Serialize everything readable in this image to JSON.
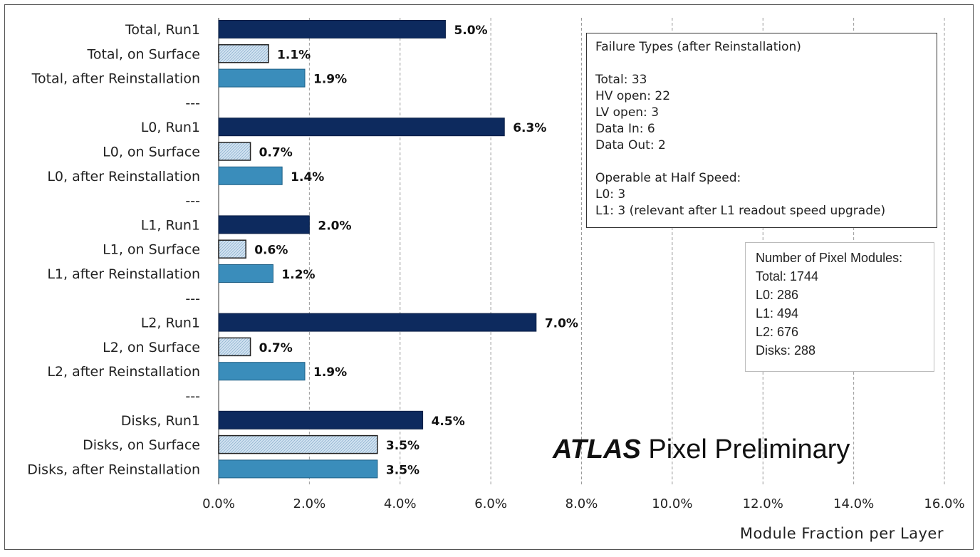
{
  "chart_data": {
    "type": "bar",
    "orientation": "horizontal",
    "xlabel": "Module Fraction per Layer",
    "xlim": [
      0,
      16
    ],
    "x_ticks": [
      "0.0%",
      "2.0%",
      "4.0%",
      "6.0%",
      "8.0%",
      "10.0%",
      "12.0%",
      "14.0%",
      "16.0%"
    ],
    "grid": "vertical dashed",
    "categories": [
      "Total, Run1",
      "Total, on Surface",
      "Total, after Reinstallation",
      "---",
      "L0, Run1",
      "L0, on Surface",
      "L0, after Reinstallation",
      "---",
      "L1, Run1",
      "L1, on Surface",
      "L1, after Reinstallation",
      "---",
      "L2, Run1",
      "L2, on Surface",
      "L2, after Reinstallation",
      "---",
      "Disks, Run1",
      "Disks, on Surface",
      "Disks, after Reinstallation"
    ],
    "values": [
      5.0,
      1.1,
      1.9,
      null,
      6.3,
      0.7,
      1.4,
      null,
      2.0,
      0.6,
      1.2,
      null,
      7.0,
      0.7,
      1.9,
      null,
      4.5,
      3.5,
      3.5
    ],
    "value_labels": [
      "5.0%",
      "1.1%",
      "1.9%",
      "",
      "6.3%",
      "0.7%",
      "1.4%",
      "",
      "2.0%",
      "0.6%",
      "1.2%",
      "",
      "7.0%",
      "0.7%",
      "1.9%",
      "",
      "4.5%",
      "3.5%",
      "3.5%"
    ],
    "bar_styles": [
      "run1",
      "surface",
      "reinstall",
      "none",
      "run1",
      "surface",
      "reinstall",
      "none",
      "run1",
      "surface",
      "reinstall",
      "none",
      "run1",
      "surface",
      "reinstall",
      "none",
      "run1",
      "surface",
      "reinstall"
    ],
    "colors": {
      "run1": "#0d2a5e",
      "surface": "#d4e4f2",
      "reinstall": "#3a8dbb",
      "grid": "#9a9a9a",
      "axis": "#555555"
    }
  },
  "failure_box": {
    "title": "Failure Types (after Reinstallation)",
    "lines_1": [
      "Total: 33",
      "HV open: 22",
      "LV open: 3",
      "Data In: 6",
      "Data Out: 2"
    ],
    "lines_2": [
      "Operable at Half Speed:",
      "L0: 3",
      "L1: 3 (relevant after L1 readout speed upgrade)"
    ]
  },
  "modules_box": {
    "lines": [
      "Number of Pixel Modules:",
      "Total: 1744",
      "L0: 286",
      "L1: 494",
      "L2: 676",
      "Disks: 288"
    ]
  },
  "brand": {
    "atlas": "ATLAS",
    "rest": " Pixel Preliminary"
  }
}
